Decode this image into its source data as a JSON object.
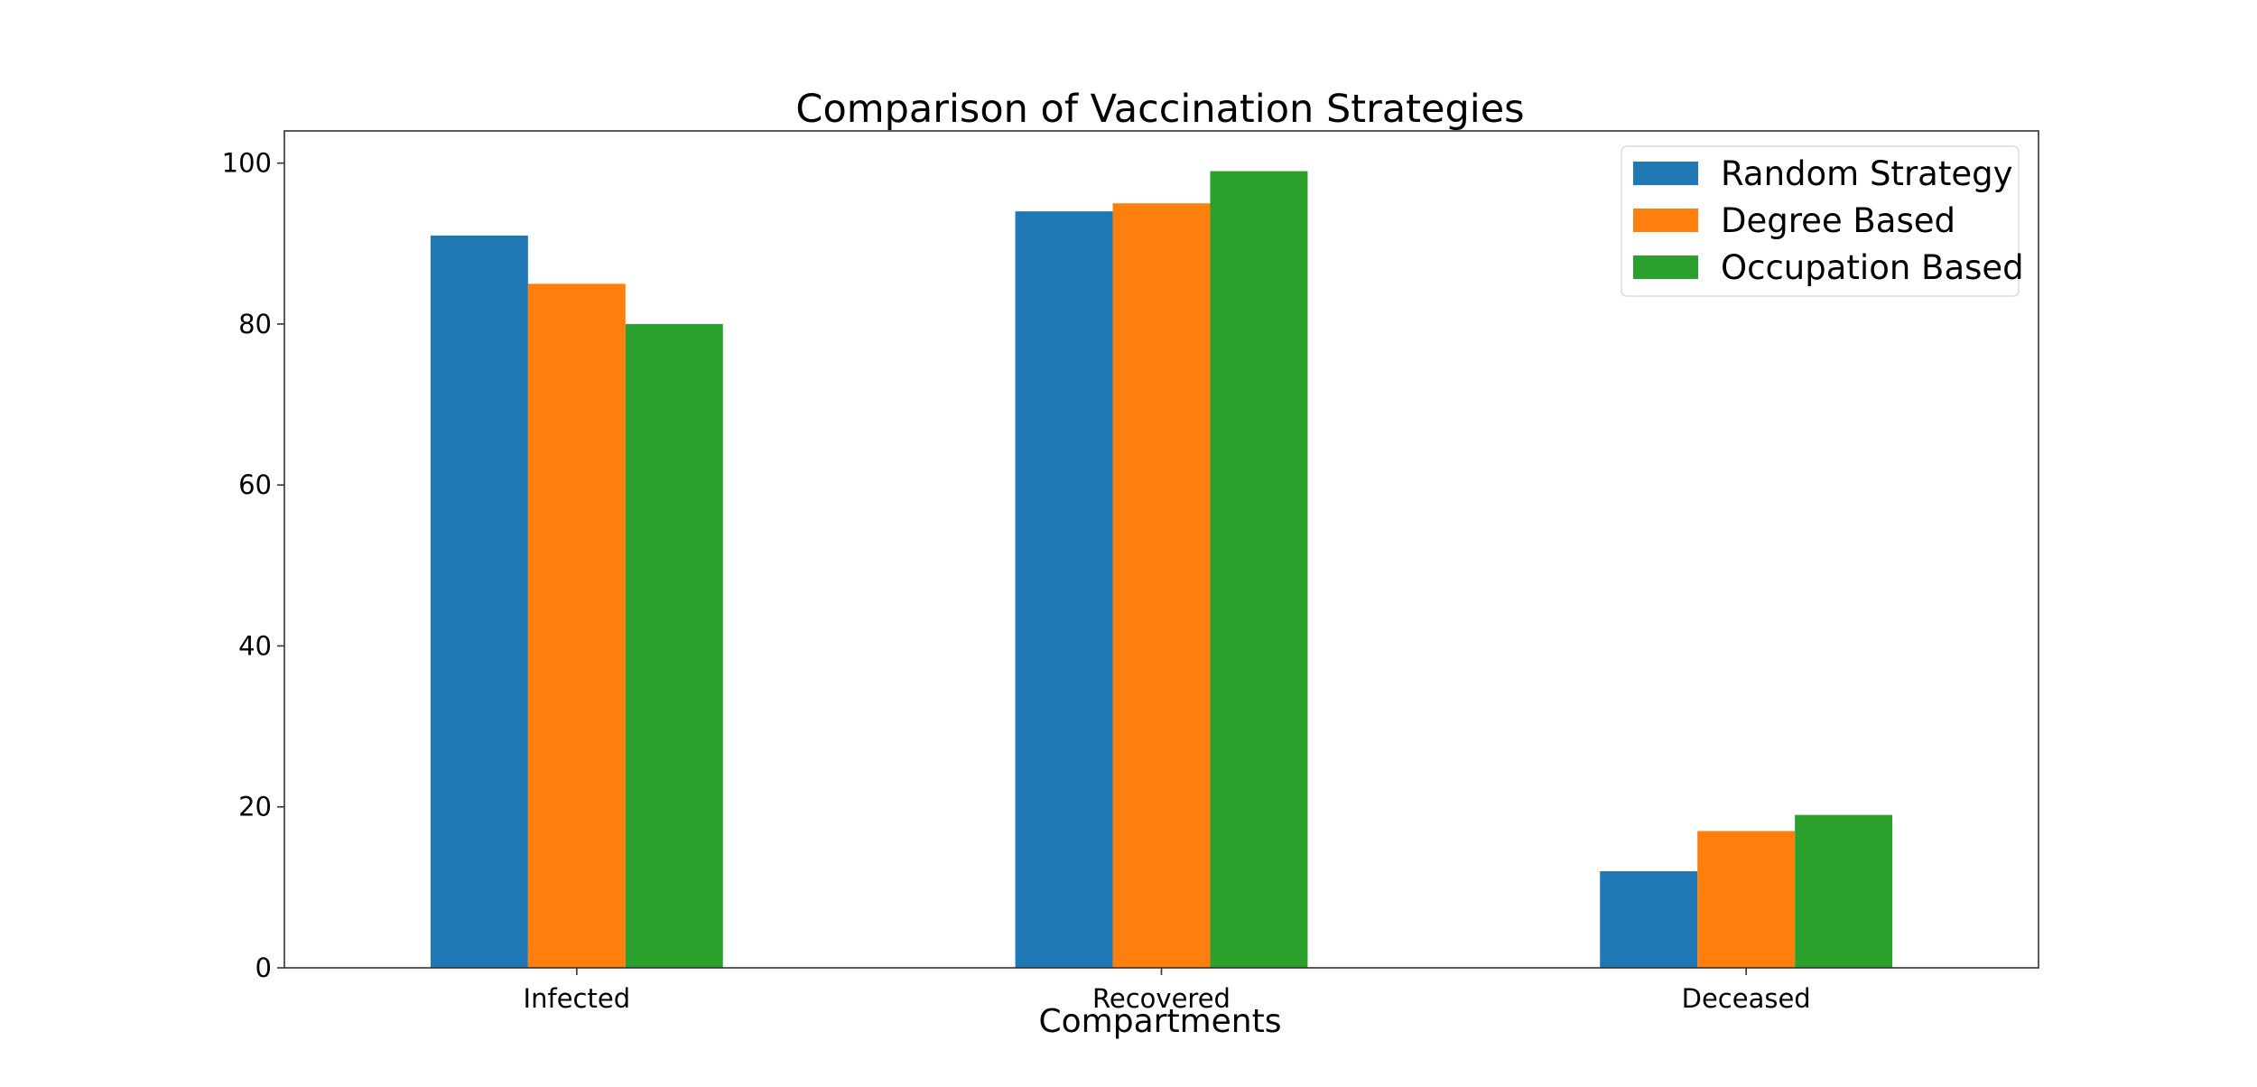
{
  "chart_data": {
    "type": "bar",
    "title": "Comparison of Vaccination Strategies",
    "xlabel": "Compartments",
    "ylabel": "",
    "categories": [
      "Infected",
      "Recovered",
      "Deceased"
    ],
    "series": [
      {
        "name": "Random Strategy",
        "values": [
          91,
          94,
          12
        ],
        "color": "#1f77b4"
      },
      {
        "name": "Degree Based",
        "values": [
          85,
          95,
          17
        ],
        "color": "#ff7f0e"
      },
      {
        "name": "Occupation Based",
        "values": [
          80,
          99,
          19
        ],
        "color": "#2ca02c"
      }
    ],
    "ylim": [
      0,
      104
    ],
    "yticks": [
      0,
      20,
      40,
      60,
      80,
      100
    ],
    "grid": false,
    "legend_position": "top-right"
  }
}
